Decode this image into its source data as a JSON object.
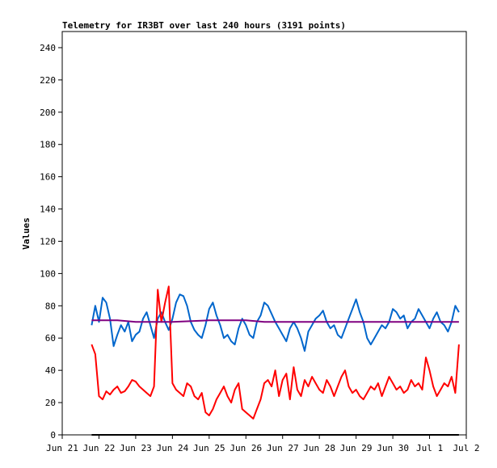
{
  "chart_data": {
    "type": "line",
    "title": "Telemetry for IR3BT over last 240 hours (3191 points)",
    "xlabel": "",
    "ylabel": "Values",
    "ylim": [
      0,
      250
    ],
    "xlim": [
      "Jun 21",
      "Jul 2"
    ],
    "x_tick_labels": [
      "Jun 21",
      "Jun 22",
      "Jun 23",
      "Jun 24",
      "Jun 25",
      "Jun 26",
      "Jun 27",
      "Jun 28",
      "Jun 29",
      "Jun 30",
      "Jul 1",
      "Jul 2"
    ],
    "y_ticks": [
      0,
      20,
      40,
      60,
      80,
      100,
      120,
      140,
      160,
      180,
      200,
      220,
      240
    ],
    "grid": false,
    "legend": "none",
    "x_unit": "days since Jun 21 00:00",
    "series": [
      {
        "color": "#0066cc",
        "x": [
          0.8,
          0.9,
          1.0,
          1.1,
          1.2,
          1.3,
          1.4,
          1.5,
          1.6,
          1.7,
          1.8,
          1.9,
          2.0,
          2.1,
          2.2,
          2.3,
          2.4,
          2.5,
          2.6,
          2.7,
          2.8,
          2.9,
          3.0,
          3.1,
          3.2,
          3.3,
          3.4,
          3.5,
          3.6,
          3.7,
          3.8,
          3.9,
          4.0,
          4.1,
          4.2,
          4.3,
          4.4,
          4.5,
          4.6,
          4.7,
          4.8,
          4.9,
          5.0,
          5.1,
          5.2,
          5.3,
          5.4,
          5.5,
          5.6,
          5.7,
          5.8,
          5.9,
          6.0,
          6.1,
          6.2,
          6.3,
          6.4,
          6.5,
          6.6,
          6.7,
          6.8,
          6.9,
          7.0,
          7.1,
          7.2,
          7.3,
          7.4,
          7.5,
          7.6,
          7.7,
          7.8,
          7.9,
          8.0,
          8.1,
          8.2,
          8.3,
          8.4,
          8.5,
          8.6,
          8.7,
          8.8,
          8.9,
          9.0,
          9.1,
          9.2,
          9.3,
          9.4,
          9.5,
          9.6,
          9.7,
          9.8,
          9.9,
          10.0,
          10.1,
          10.2,
          10.3,
          10.4,
          10.5,
          10.6,
          10.7,
          10.8
        ],
        "values": [
          68,
          80,
          70,
          85,
          82,
          72,
          55,
          62,
          68,
          64,
          70,
          58,
          62,
          64,
          72,
          76,
          68,
          60,
          72,
          76,
          70,
          65,
          72,
          82,
          87,
          86,
          80,
          70,
          65,
          62,
          60,
          68,
          78,
          82,
          74,
          68,
          60,
          62,
          58,
          56,
          66,
          72,
          68,
          62,
          60,
          70,
          74,
          82,
          80,
          75,
          70,
          66,
          62,
          58,
          66,
          70,
          66,
          60,
          52,
          64,
          68,
          72,
          74,
          77,
          70,
          66,
          68,
          62,
          60,
          66,
          72,
          78,
          84,
          76,
          70,
          60,
          56,
          60,
          64,
          68,
          66,
          70,
          78,
          76,
          72,
          74,
          66,
          70,
          72,
          78,
          74,
          70,
          66,
          72,
          76,
          70,
          68,
          64,
          70,
          80,
          76
        ]
      },
      {
        "color": "#ff0000",
        "x": [
          0.8,
          0.9,
          1.0,
          1.1,
          1.2,
          1.3,
          1.4,
          1.5,
          1.6,
          1.7,
          1.8,
          1.9,
          2.0,
          2.1,
          2.2,
          2.3,
          2.4,
          2.5,
          2.6,
          2.7,
          2.8,
          2.9,
          3.0,
          3.1,
          3.2,
          3.3,
          3.4,
          3.5,
          3.6,
          3.7,
          3.8,
          3.9,
          4.0,
          4.1,
          4.2,
          4.3,
          4.4,
          4.5,
          4.6,
          4.7,
          4.8,
          4.9,
          5.0,
          5.1,
          5.2,
          5.3,
          5.4,
          5.5,
          5.6,
          5.7,
          5.8,
          5.9,
          6.0,
          6.1,
          6.2,
          6.3,
          6.4,
          6.5,
          6.6,
          6.7,
          6.8,
          6.9,
          7.0,
          7.1,
          7.2,
          7.3,
          7.4,
          7.5,
          7.6,
          7.7,
          7.8,
          7.9,
          8.0,
          8.1,
          8.2,
          8.3,
          8.4,
          8.5,
          8.6,
          8.7,
          8.8,
          8.9,
          9.0,
          9.1,
          9.2,
          9.3,
          9.4,
          9.5,
          9.6,
          9.7,
          9.8,
          9.9,
          10.0,
          10.1,
          10.2,
          10.3,
          10.4,
          10.5,
          10.6,
          10.7,
          10.8
        ],
        "values": [
          56,
          50,
          24,
          22,
          27,
          25,
          28,
          30,
          26,
          27,
          30,
          34,
          33,
          30,
          28,
          26,
          24,
          30,
          90,
          70,
          82,
          92,
          32,
          28,
          26,
          24,
          32,
          30,
          24,
          22,
          26,
          14,
          12,
          16,
          22,
          26,
          30,
          24,
          20,
          28,
          32,
          16,
          14,
          12,
          10,
          16,
          22,
          32,
          34,
          30,
          40,
          24,
          34,
          38,
          22,
          42,
          28,
          24,
          34,
          30,
          36,
          32,
          28,
          26,
          34,
          30,
          24,
          30,
          36,
          40,
          30,
          26,
          28,
          24,
          22,
          26,
          30,
          28,
          32,
          24,
          30,
          36,
          32,
          28,
          30,
          26,
          28,
          34,
          30,
          32,
          28,
          48,
          40,
          30,
          24,
          28,
          32,
          30,
          36,
          26,
          56
        ]
      },
      {
        "color": "#800080",
        "x": [
          0.8,
          1.5,
          2.0,
          3.0,
          4.0,
          5.0,
          5.5,
          6.0,
          7.0,
          8.0,
          9.0,
          10.0,
          10.8
        ],
        "values": [
          71,
          71,
          70,
          70,
          71,
          71,
          70,
          70,
          70,
          70,
          70,
          70,
          70
        ]
      },
      {
        "color": "#000000",
        "x": [
          0.8,
          10.8
        ],
        "values": [
          0,
          0
        ]
      }
    ]
  }
}
